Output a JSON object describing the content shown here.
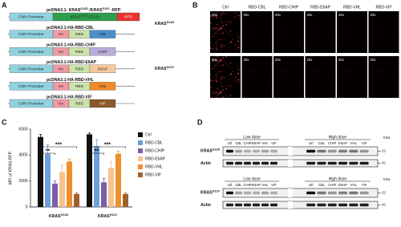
{
  "construct_panel": {
    "label": "A",
    "constructs": [
      {
        "title": [
          {
            "t": "pcDNA3.1- KRAS"
          },
          {
            "t": "G12D",
            "sup": true
          },
          {
            "t": " /KRAS"
          },
          {
            "t": "G12V",
            "sup": true
          },
          {
            "t": " -RFP"
          }
        ],
        "parts": [
          {
            "text": "CMV Promoter",
            "color": "#8fd3df"
          },
          {
            "text": [
              {
                "t": "KRAS"
              },
              {
                "t": "G12D",
                "sup": true
              },
              {
                "t": " /G12V"
              }
            ],
            "color": "#2e9e4c"
          },
          {
            "text": "RFP",
            "color": "#e8352f"
          }
        ]
      },
      {
        "title": "pcDNA3.1-HA-RBD-CBL",
        "parts": [
          {
            "text": "CMV Promoter",
            "color": "#8fd3df"
          },
          {
            "text": "HA",
            "color": "#f09aa3"
          },
          {
            "text": "RBD",
            "color": "#cde3ab"
          },
          {
            "text": "CBL",
            "color": "#4a8fcb"
          }
        ]
      },
      {
        "title": "pcDNA3.1-HA-RBD-CHIP",
        "parts": [
          {
            "text": "CMV Promoter",
            "color": "#8fd3df"
          },
          {
            "text": "HA",
            "color": "#f09aa3"
          },
          {
            "text": "RBD",
            "color": "#cde3ab"
          },
          {
            "text": "CHIP",
            "color": "#b9acdb"
          }
        ]
      },
      {
        "title": "pcDNA3.1-HA-RBD-E6AP",
        "parts": [
          {
            "text": "CMV Promoter",
            "color": "#8fd3df"
          },
          {
            "text": "HA",
            "color": "#f09aa3"
          },
          {
            "text": "RBD",
            "color": "#cde3ab"
          },
          {
            "text": "E6AP",
            "color": "#f8c89a"
          }
        ]
      },
      {
        "title": "pcDNA3.1-HA-RBD-VHL",
        "parts": [
          {
            "text": "CMV Promoter",
            "color": "#8fd3df"
          },
          {
            "text": "HA",
            "color": "#f09aa3"
          },
          {
            "text": "RBD",
            "color": "#cde3ab"
          },
          {
            "text": "VHL",
            "color": "#ef8a2b"
          }
        ]
      },
      {
        "title": "pcDNA3.1-HA-RBD-VIF",
        "parts": [
          {
            "text": "CMV Promoter",
            "color": "#8fd3df"
          },
          {
            "text": "HA",
            "color": "#f09aa3"
          },
          {
            "text": "RBD",
            "color": "#cde3ab"
          },
          {
            "text": "VIF",
            "color": "#8a5a2c"
          }
        ]
      }
    ]
  },
  "image_panel": {
    "label": "B",
    "columns": [
      "Ctrl",
      "RBD-CBL",
      "RBD-CHIP",
      "RBD-E6AP",
      "RBD-VHL",
      "RBD-VIF"
    ],
    "rows": [
      [
        {
          "t": "KRAS"
        },
        {
          "t": "G12D",
          "sup": true
        }
      ],
      [
        {
          "t": "KRAS"
        },
        {
          "t": "G12V",
          "sup": true
        }
      ]
    ],
    "magnification": "20x"
  },
  "chart_data": {
    "type": "bar",
    "label": "C",
    "ylabel": "MFI of KRAS-RFP",
    "categories": [
      [
        {
          "t": "KRAS"
        },
        {
          "t": "G12D",
          "sup": true
        }
      ],
      [
        {
          "t": "KRAS"
        },
        {
          "t": "G12V",
          "sup": true
        }
      ]
    ],
    "series": [
      {
        "name": "Ctrl",
        "color": "#111111",
        "values": [
          5400,
          5600
        ],
        "errors": [
          200,
          100
        ]
      },
      {
        "name": "RBD-CBL",
        "color": "#6d9fd9",
        "values": [
          4100,
          4700
        ],
        "errors": [
          700,
          500
        ]
      },
      {
        "name": "RBD-CHIP",
        "color": "#7b5ea8",
        "values": [
          1800,
          1900
        ],
        "errors": [
          200,
          300
        ]
      },
      {
        "name": "RBD-E6AP",
        "color": "#f7c38c",
        "values": [
          2700,
          3000
        ],
        "errors": [
          500,
          500
        ]
      },
      {
        "name": "RBD-VHL",
        "color": "#ef8f2c",
        "values": [
          3500,
          4100
        ],
        "errors": [
          200,
          200
        ]
      },
      {
        "name": "RBD-VIF",
        "color": "#a0622b",
        "values": [
          1000,
          1000
        ],
        "errors": [
          100,
          100
        ]
      }
    ],
    "annotations": [
      "**",
      "***",
      "**",
      "***"
    ],
    "ylim": [
      0,
      6000
    ],
    "yticks": [
      0,
      2000,
      4000,
      6000
    ]
  },
  "blot_panel": {
    "label": "D",
    "doses": [
      "Low dose",
      "High dose"
    ],
    "lanes": [
      "ctrl",
      "CBL",
      "CHIP",
      "E6AP",
      "VHL",
      "VIF"
    ],
    "kda": "KDa",
    "blocks": [
      {
        "rows": [
          {
            "label": [
              {
                "t": "KRAS"
              },
              {
                "t": "G12D",
                "sup": true
              }
            ],
            "marker": 22
          },
          {
            "label": "Actin",
            "marker": 42
          }
        ]
      },
      {
        "rows": [
          {
            "label": [
              {
                "t": "KRAS"
              },
              {
                "t": "G12V",
                "sup": true
              }
            ],
            "marker": 22
          },
          {
            "label": "Actin",
            "marker": 42
          }
        ]
      }
    ]
  }
}
